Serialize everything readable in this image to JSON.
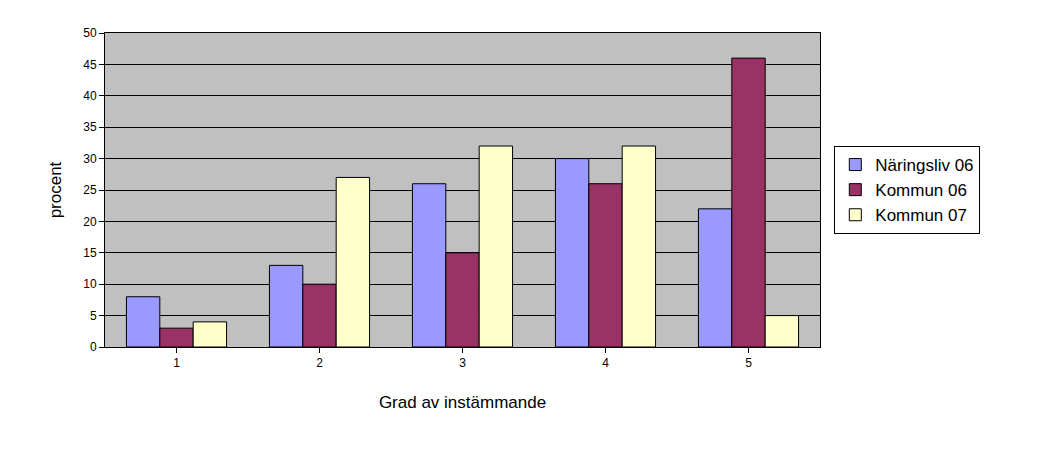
{
  "chart_data": {
    "type": "bar",
    "x_label": "Grad av instämmande",
    "y_label": "procent",
    "categories": [
      "1",
      "2",
      "3",
      "4",
      "5"
    ],
    "series": [
      {
        "name": "Näringsliv 06",
        "color": "#9999ff",
        "values": [
          8,
          13,
          26,
          30,
          22
        ]
      },
      {
        "name": "Kommun 06",
        "color": "#993366",
        "values": [
          3,
          10,
          15,
          26,
          46
        ]
      },
      {
        "name": "Kommun 07",
        "color": "#ffffcc",
        "values": [
          4,
          27,
          32,
          32,
          5
        ]
      }
    ],
    "ylim": [
      0,
      50
    ],
    "yticks": [
      0,
      5,
      10,
      15,
      20,
      25,
      30,
      35,
      40,
      45,
      50
    ],
    "grid": true,
    "legend": "right"
  }
}
